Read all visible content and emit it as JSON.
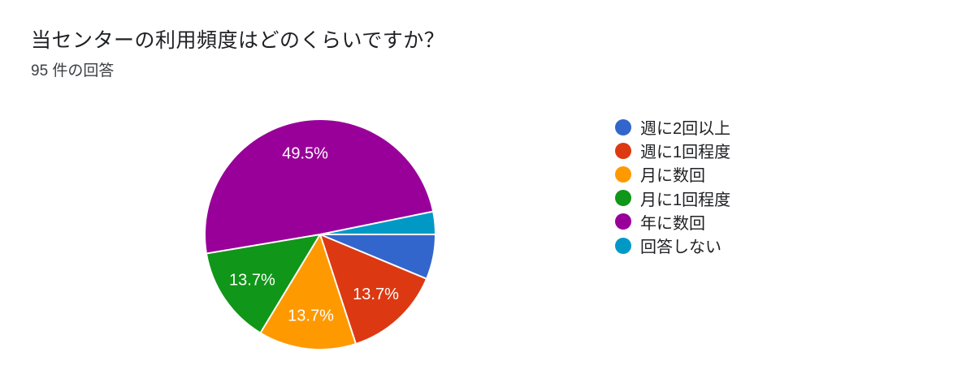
{
  "header": {
    "title": "当センターの利用頻度はどのくらいですか？",
    "responses_count": "95 件の回答"
  },
  "chart_data": {
    "type": "pie",
    "title": "当センターの利用頻度はどのくらいですか？",
    "subtitle": "95 件の回答",
    "total_responses": 95,
    "start_angle_deg": 0,
    "direction": "clockwise",
    "legend_position": "right",
    "separator_color": "#ffffff",
    "label_color": "#ffffff",
    "slices": [
      {
        "label": "週に2回以上",
        "percent": 6.3,
        "display_label": "",
        "color": "#3366CC"
      },
      {
        "label": "週に1回程度",
        "percent": 13.7,
        "display_label": "13.7%",
        "color": "#DC3912"
      },
      {
        "label": "月に数回",
        "percent": 13.7,
        "display_label": "13.7%",
        "color": "#FF9900"
      },
      {
        "label": "月に1回程度",
        "percent": 13.7,
        "display_label": "13.7%",
        "color": "#109618"
      },
      {
        "label": "年に数回",
        "percent": 49.5,
        "display_label": "49.5%",
        "color": "#990099"
      },
      {
        "label": "回答しない",
        "percent": 3.2,
        "display_label": "",
        "color": "#0099C6"
      }
    ]
  }
}
